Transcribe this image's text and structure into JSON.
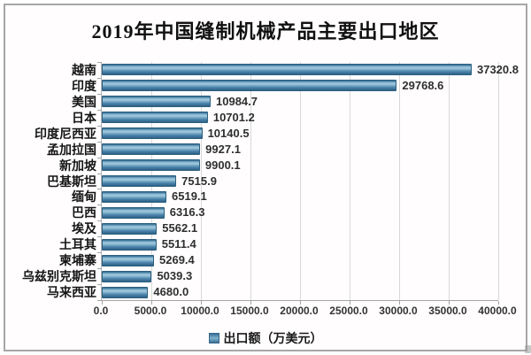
{
  "title": "2019年中国缝制机械产品主要出口地区",
  "legend": {
    "label": "出口额（万美元）",
    "marker_color": "#4e87ad"
  },
  "colors": {
    "bar_main": "#4e87ad",
    "bar_edge": "#2c5f80",
    "gridline": "#d9d9d9",
    "frame_border": "#a7a7a7",
    "text": "#151515"
  },
  "chart_data": {
    "type": "bar",
    "orientation": "horizontal",
    "title": "2019年中国缝制机械产品主要出口地区",
    "categories": [
      "越南",
      "印度",
      "美国",
      "日本",
      "印度尼西亚",
      "孟加拉国",
      "新加坡",
      "巴基斯坦",
      "缅甸",
      "巴西",
      "埃及",
      "土耳其",
      "柬埔寨",
      "乌兹别克斯坦",
      "马来西亚"
    ],
    "values": [
      37320.8,
      29768.6,
      10984.7,
      10701.2,
      10140.5,
      9927.1,
      9900.1,
      7515.9,
      6519.1,
      6316.3,
      5562.1,
      5511.4,
      5269.4,
      5039.3,
      4680.0
    ],
    "value_labels": [
      "37320.8",
      "29768.6",
      "10984.7",
      "10701.2",
      "10140.5",
      "9927.1",
      "9900.1",
      "7515.9",
      "6519.1",
      "6316.3",
      "5562.1",
      "5511.4",
      "5269.4",
      "5039.3",
      "4680.0"
    ],
    "xlabel": "",
    "ylabel": "",
    "xlim": [
      0,
      40000
    ],
    "x_ticks": [
      "0.0",
      "5000.0",
      "10000.0",
      "15000.0",
      "20000.0",
      "25000.0",
      "30000.0",
      "35000.0",
      "40000.0"
    ],
    "x_tick_values": [
      0,
      5000,
      10000,
      15000,
      20000,
      25000,
      30000,
      35000,
      40000
    ],
    "grid": true,
    "legend": [
      "出口额（万美元）"
    ],
    "legend_position": "bottom"
  }
}
